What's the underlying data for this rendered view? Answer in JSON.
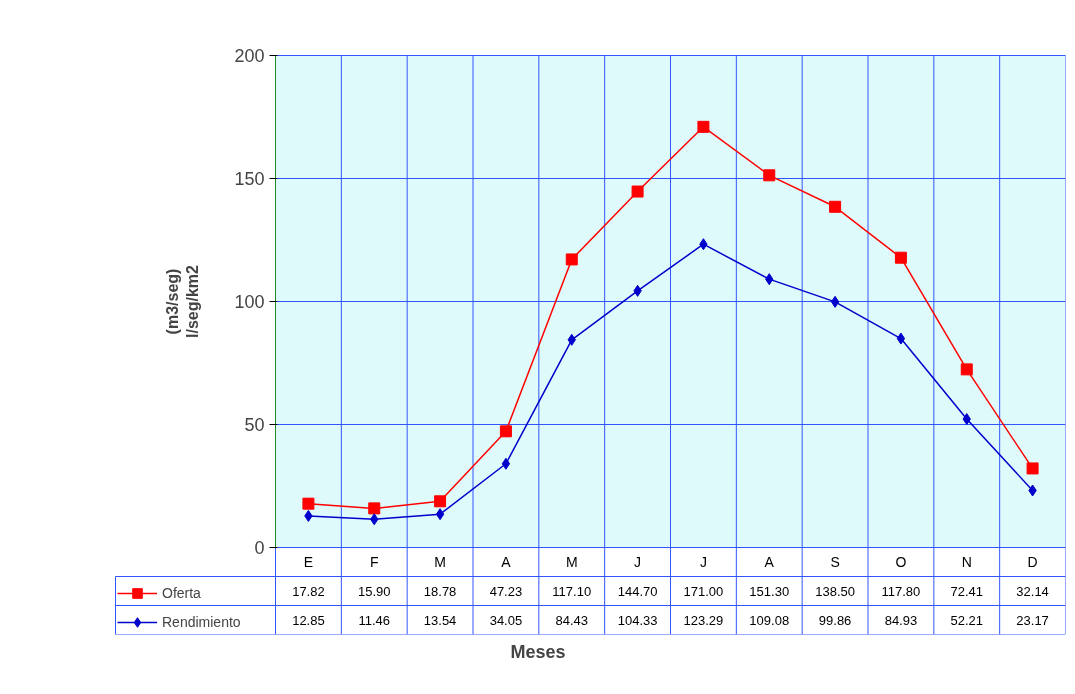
{
  "chart_data": {
    "type": "line",
    "xlabel": "Meses",
    "ylabel": "(m3/seg)\nl/seg/km2",
    "categories": [
      "E",
      "F",
      "M",
      "A",
      "M",
      "J",
      "J",
      "A",
      "S",
      "O",
      "N",
      "D"
    ],
    "series": [
      {
        "name": "Oferta",
        "color": "#ff0000",
        "marker": "square",
        "values": [
          17.82,
          15.9,
          18.78,
          47.23,
          117.1,
          144.7,
          171.0,
          151.3,
          138.5,
          117.8,
          72.41,
          32.14
        ],
        "value_labels": [
          "17.82",
          "15.90",
          "18.78",
          "47.23",
          "117.10",
          "144.70",
          "171.00",
          "151.30",
          "138.50",
          "117.80",
          "72.41",
          "32.14"
        ]
      },
      {
        "name": "Rendimiento",
        "color": "#0000cc",
        "marker": "diamond",
        "values": [
          12.85,
          11.46,
          13.54,
          34.05,
          84.43,
          104.33,
          123.29,
          109.08,
          99.86,
          84.93,
          52.21,
          23.17
        ],
        "value_labels": [
          "12.85",
          "11.46",
          "13.54",
          "34.05",
          "84.43",
          "104.33",
          "123.29",
          "109.08",
          "99.86",
          "84.93",
          "52.21",
          "23.17"
        ]
      }
    ],
    "ylim": [
      0,
      200
    ],
    "yticks": [
      0,
      50,
      100,
      150,
      200
    ],
    "grid": true,
    "legend": "bottom left"
  }
}
